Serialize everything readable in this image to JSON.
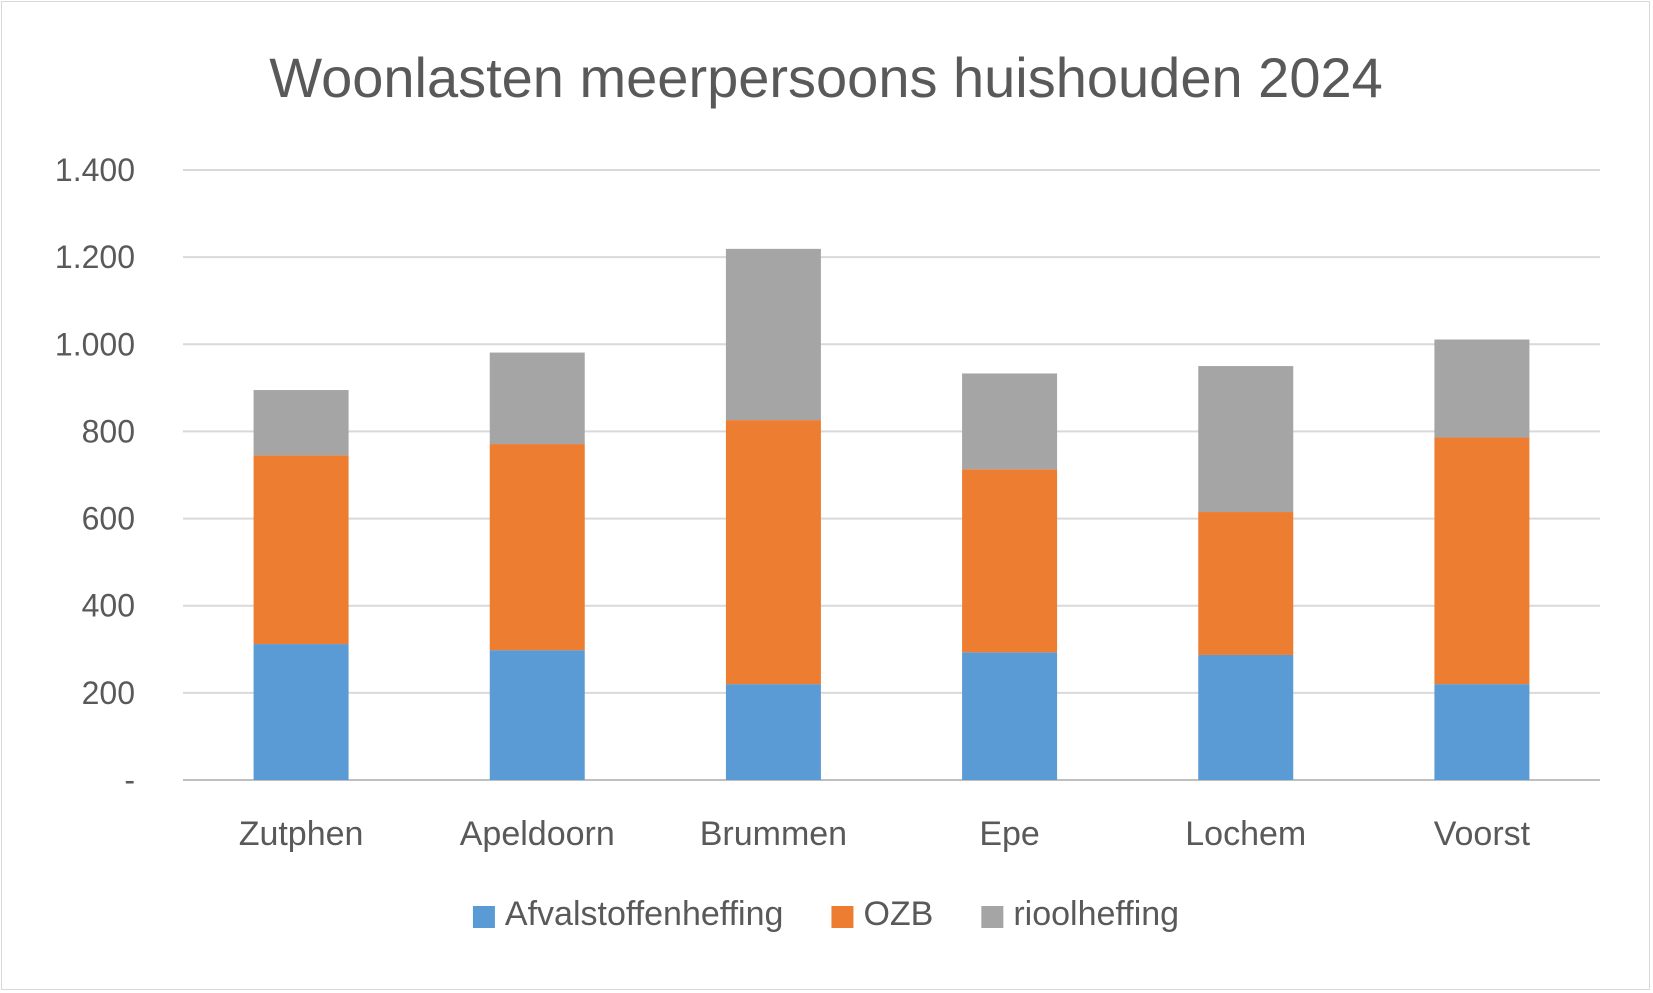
{
  "chart_data": {
    "type": "bar",
    "stacked": true,
    "title": "Woonlasten meerpersoons huishouden 2024",
    "categories": [
      "Zutphen",
      "Apeldoorn",
      "Brummen",
      "Epe",
      "Lochem",
      "Voorst"
    ],
    "series": [
      {
        "name": "Afvalstoffenheffing",
        "color": "#5b9bd5",
        "values": [
          312,
          298,
          220,
          293,
          287,
          220
        ]
      },
      {
        "name": "OZB",
        "color": "#ed7d31",
        "values": [
          433,
          473,
          606,
          420,
          328,
          566
        ]
      },
      {
        "name": "rioolheffing",
        "color": "#a5a5a5",
        "values": [
          150,
          210,
          393,
          220,
          335,
          225
        ]
      }
    ],
    "y_ticks": [
      "-",
      "200",
      "400",
      "600",
      "800",
      "1.000",
      "1.200",
      "1.400"
    ],
    "ylim": [
      0,
      1400
    ],
    "grid": true,
    "legend_position": "bottom"
  }
}
